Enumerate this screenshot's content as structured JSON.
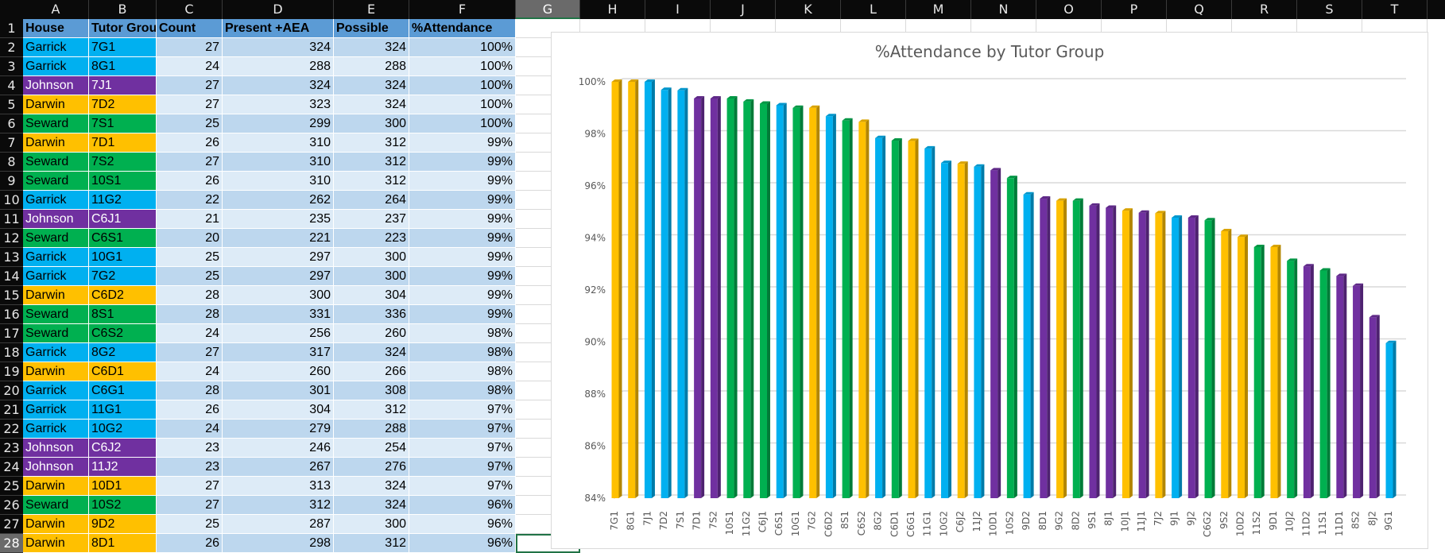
{
  "sheet": {
    "columns": [
      "A",
      "B",
      "C",
      "D",
      "E",
      "F",
      "G",
      "H",
      "I",
      "J",
      "K",
      "L",
      "M",
      "N",
      "O",
      "P",
      "Q",
      "R",
      "S",
      "T"
    ],
    "selected_column": "G",
    "selected_row": "28",
    "rows": [
      "1",
      "2",
      "3",
      "4",
      "5",
      "6",
      "7",
      "8",
      "9",
      "10",
      "11",
      "12",
      "13",
      "14",
      "15",
      "16",
      "17",
      "18",
      "19",
      "20",
      "21",
      "22",
      "23",
      "24",
      "25",
      "26",
      "27",
      "28"
    ]
  },
  "table": {
    "headers": [
      "House",
      "Tutor Group",
      "Count",
      "Present +AEA",
      "Possible",
      "%Attendance"
    ],
    "house_colors": {
      "Garrick": "#00b0f0",
      "Johnson": "#7030a0",
      "Darwin": "#ffc000",
      "Seward": "#00b050"
    },
    "records": [
      {
        "house": "Garrick",
        "group": "7G1",
        "count": "27",
        "present": "324",
        "possible": "324",
        "pct": "100%"
      },
      {
        "house": "Garrick",
        "group": "8G1",
        "count": "24",
        "present": "288",
        "possible": "288",
        "pct": "100%"
      },
      {
        "house": "Johnson",
        "group": "7J1",
        "count": "27",
        "present": "324",
        "possible": "324",
        "pct": "100%"
      },
      {
        "house": "Darwin",
        "group": "7D2",
        "count": "27",
        "present": "323",
        "possible": "324",
        "pct": "100%"
      },
      {
        "house": "Seward",
        "group": "7S1",
        "count": "25",
        "present": "299",
        "possible": "300",
        "pct": "100%"
      },
      {
        "house": "Darwin",
        "group": "7D1",
        "count": "26",
        "present": "310",
        "possible": "312",
        "pct": "99%"
      },
      {
        "house": "Seward",
        "group": "7S2",
        "count": "27",
        "present": "310",
        "possible": "312",
        "pct": "99%"
      },
      {
        "house": "Seward",
        "group": "10S1",
        "count": "26",
        "present": "310",
        "possible": "312",
        "pct": "99%"
      },
      {
        "house": "Garrick",
        "group": "11G2",
        "count": "22",
        "present": "262",
        "possible": "264",
        "pct": "99%"
      },
      {
        "house": "Johnson",
        "group": "C6J1",
        "count": "21",
        "present": "235",
        "possible": "237",
        "pct": "99%"
      },
      {
        "house": "Seward",
        "group": "C6S1",
        "count": "20",
        "present": "221",
        "possible": "223",
        "pct": "99%"
      },
      {
        "house": "Garrick",
        "group": "10G1",
        "count": "25",
        "present": "297",
        "possible": "300",
        "pct": "99%"
      },
      {
        "house": "Garrick",
        "group": "7G2",
        "count": "25",
        "present": "297",
        "possible": "300",
        "pct": "99%"
      },
      {
        "house": "Darwin",
        "group": "C6D2",
        "count": "28",
        "present": "300",
        "possible": "304",
        "pct": "99%"
      },
      {
        "house": "Seward",
        "group": "8S1",
        "count": "28",
        "present": "331",
        "possible": "336",
        "pct": "99%"
      },
      {
        "house": "Seward",
        "group": "C6S2",
        "count": "24",
        "present": "256",
        "possible": "260",
        "pct": "98%"
      },
      {
        "house": "Garrick",
        "group": "8G2",
        "count": "27",
        "present": "317",
        "possible": "324",
        "pct": "98%"
      },
      {
        "house": "Darwin",
        "group": "C6D1",
        "count": "24",
        "present": "260",
        "possible": "266",
        "pct": "98%"
      },
      {
        "house": "Garrick",
        "group": "C6G1",
        "count": "28",
        "present": "301",
        "possible": "308",
        "pct": "98%"
      },
      {
        "house": "Garrick",
        "group": "11G1",
        "count": "26",
        "present": "304",
        "possible": "312",
        "pct": "97%"
      },
      {
        "house": "Garrick",
        "group": "10G2",
        "count": "24",
        "present": "279",
        "possible": "288",
        "pct": "97%"
      },
      {
        "house": "Johnson",
        "group": "C6J2",
        "count": "23",
        "present": "246",
        "possible": "254",
        "pct": "97%"
      },
      {
        "house": "Johnson",
        "group": "11J2",
        "count": "23",
        "present": "267",
        "possible": "276",
        "pct": "97%"
      },
      {
        "house": "Darwin",
        "group": "10D1",
        "count": "27",
        "present": "313",
        "possible": "324",
        "pct": "97%"
      },
      {
        "house": "Seward",
        "group": "10S2",
        "count": "27",
        "present": "312",
        "possible": "324",
        "pct": "96%"
      },
      {
        "house": "Darwin",
        "group": "9D2",
        "count": "25",
        "present": "287",
        "possible": "300",
        "pct": "96%"
      },
      {
        "house": "Darwin",
        "group": "8D1",
        "count": "26",
        "present": "298",
        "possible": "312",
        "pct": "96%"
      }
    ]
  },
  "chart_data": {
    "type": "bar",
    "title": "%Attendance by Tutor Group",
    "xlabel": "",
    "ylabel": "",
    "ylim": [
      84,
      100
    ],
    "ytick_step": 2,
    "ytick_labels": [
      "84%",
      "86%",
      "88%",
      "90%",
      "92%",
      "94%",
      "96%",
      "98%",
      "100%"
    ],
    "grid": true,
    "legend": "none",
    "categories": [
      "7G1",
      "8G1",
      "7J1",
      "7D2",
      "7S1",
      "7D1",
      "7S2",
      "10S1",
      "11G2",
      "C6J1",
      "C6S1",
      "10G1",
      "7G2",
      "C6D2",
      "8S1",
      "C6S2",
      "8G2",
      "C6D1",
      "C6G1",
      "11G1",
      "10G2",
      "C6J2",
      "11J2",
      "10D1",
      "10S2",
      "9D2",
      "8D1",
      "9G2",
      "8D2",
      "9S1",
      "8J1",
      "10J1",
      "11J1",
      "7J2",
      "9J1",
      "9J2",
      "C6G2",
      "9S2",
      "10D2",
      "11S2",
      "9D1",
      "10J2",
      "11D2",
      "11S1",
      "11D1",
      "8S2",
      "8J2",
      "9G1"
    ],
    "values": [
      100.0,
      100.0,
      100.0,
      99.69,
      99.67,
      99.36,
      99.36,
      99.36,
      99.24,
      99.16,
      99.1,
      99.0,
      99.0,
      98.68,
      98.51,
      98.46,
      97.84,
      97.74,
      97.73,
      97.44,
      96.88,
      96.85,
      96.74,
      96.6,
      96.3,
      95.67,
      95.51,
      95.43,
      95.43,
      95.24,
      95.16,
      95.05,
      94.97,
      94.95,
      94.78,
      94.78,
      94.68,
      94.26,
      94.04,
      93.65,
      93.65,
      93.12,
      92.91,
      92.75,
      92.54,
      92.16,
      90.95,
      89.96
    ],
    "bar_colors": [
      "#ffc000",
      "#ffc000",
      "#00b0f0",
      "#00b0f0",
      "#00b0f0",
      "#7030a0",
      "#7030a0",
      "#00b050",
      "#00b050",
      "#00b050",
      "#00b0f0",
      "#00b050",
      "#ffc000",
      "#00b0f0",
      "#00b050",
      "#ffc000",
      "#00b0f0",
      "#00b050",
      "#ffc000",
      "#00b0f0",
      "#00b0f0",
      "#ffc000",
      "#00b0f0",
      "#7030a0",
      "#00b050",
      "#00b0f0",
      "#7030a0",
      "#ffc000",
      "#00b050",
      "#7030a0",
      "#7030a0",
      "#ffc000",
      "#7030a0",
      "#ffc000",
      "#00b0f0",
      "#7030a0",
      "#00b050",
      "#ffc000",
      "#ffc000",
      "#00b050",
      "#ffc000",
      "#00b050",
      "#7030a0",
      "#00b050",
      "#7030a0",
      "#7030a0",
      "#7030a0",
      "#00b0f0"
    ],
    "unit": "%"
  }
}
